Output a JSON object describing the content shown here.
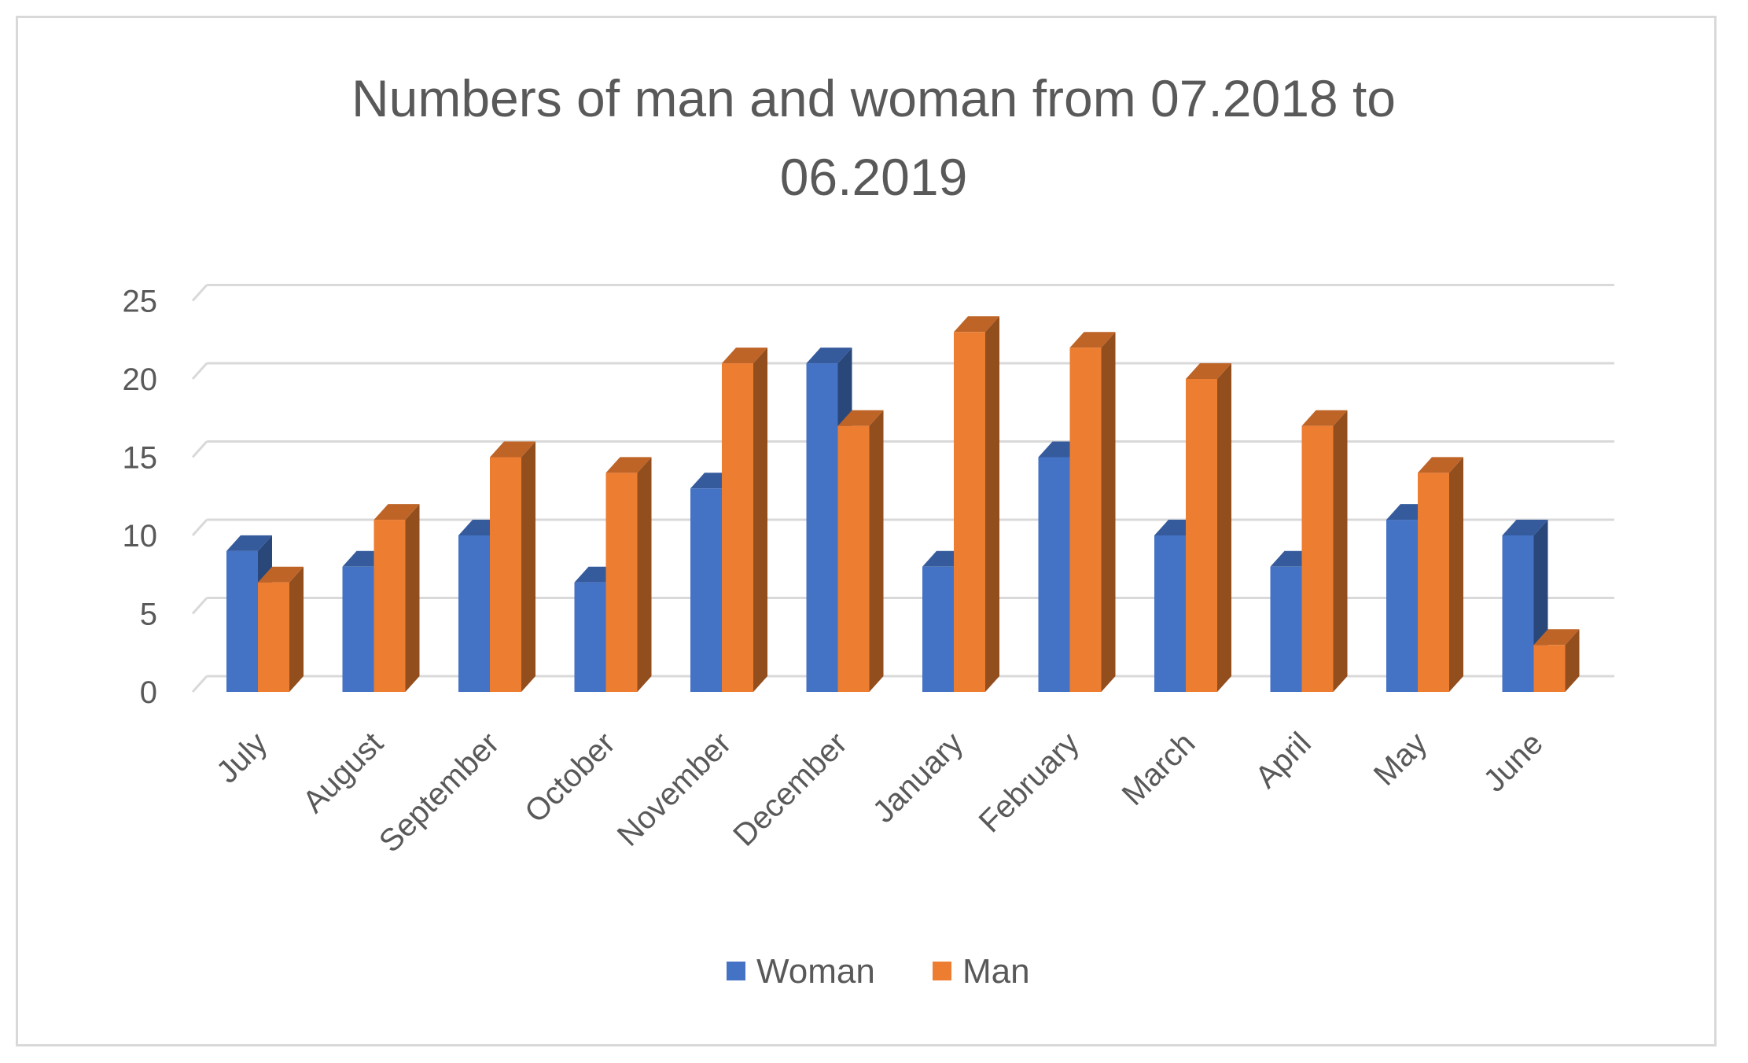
{
  "chart_data": {
    "type": "bar",
    "title_line1": "Numbers of man and woman from 07.2018 to",
    "title_line2": "06.2019",
    "categories": [
      "July",
      "August",
      "September",
      "October",
      "November",
      "December",
      "January",
      "February",
      "March",
      "April",
      "May",
      "June"
    ],
    "series": [
      {
        "name": "Woman",
        "color": "#4472c4",
        "values": [
          9,
          8,
          10,
          7,
          13,
          21,
          8,
          15,
          10,
          8,
          11,
          10
        ]
      },
      {
        "name": "Man",
        "color": "#ed7d31",
        "values": [
          7,
          11,
          15,
          14,
          21,
          17,
          23,
          22,
          20,
          17,
          14,
          3
        ]
      }
    ],
    "ylim": [
      0,
      25
    ],
    "yticks": [
      "0",
      "5",
      "10",
      "15",
      "20",
      "25"
    ],
    "grid": true,
    "legend_position": "bottom"
  }
}
